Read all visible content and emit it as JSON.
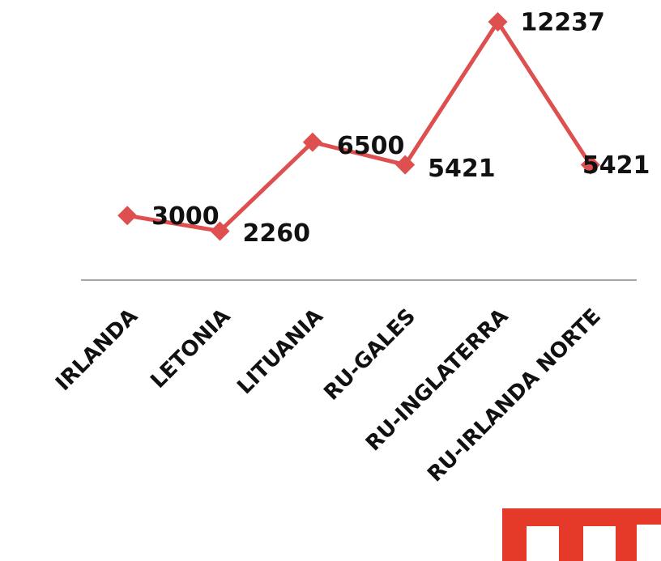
{
  "chart_data": {
    "type": "line",
    "categories": [
      "IRLANDA",
      "LETONIA",
      "LITUANIA",
      "RU-GALES",
      "RU-INGLATERRA",
      "RU-IRLANDA NORTE"
    ],
    "series": [
      {
        "color": "#de4f4f",
        "values": [
          3000,
          2260,
          6500,
          5421,
          12237,
          5421
        ]
      }
    ],
    "ylim": [
      0,
      13280
    ]
  }
}
